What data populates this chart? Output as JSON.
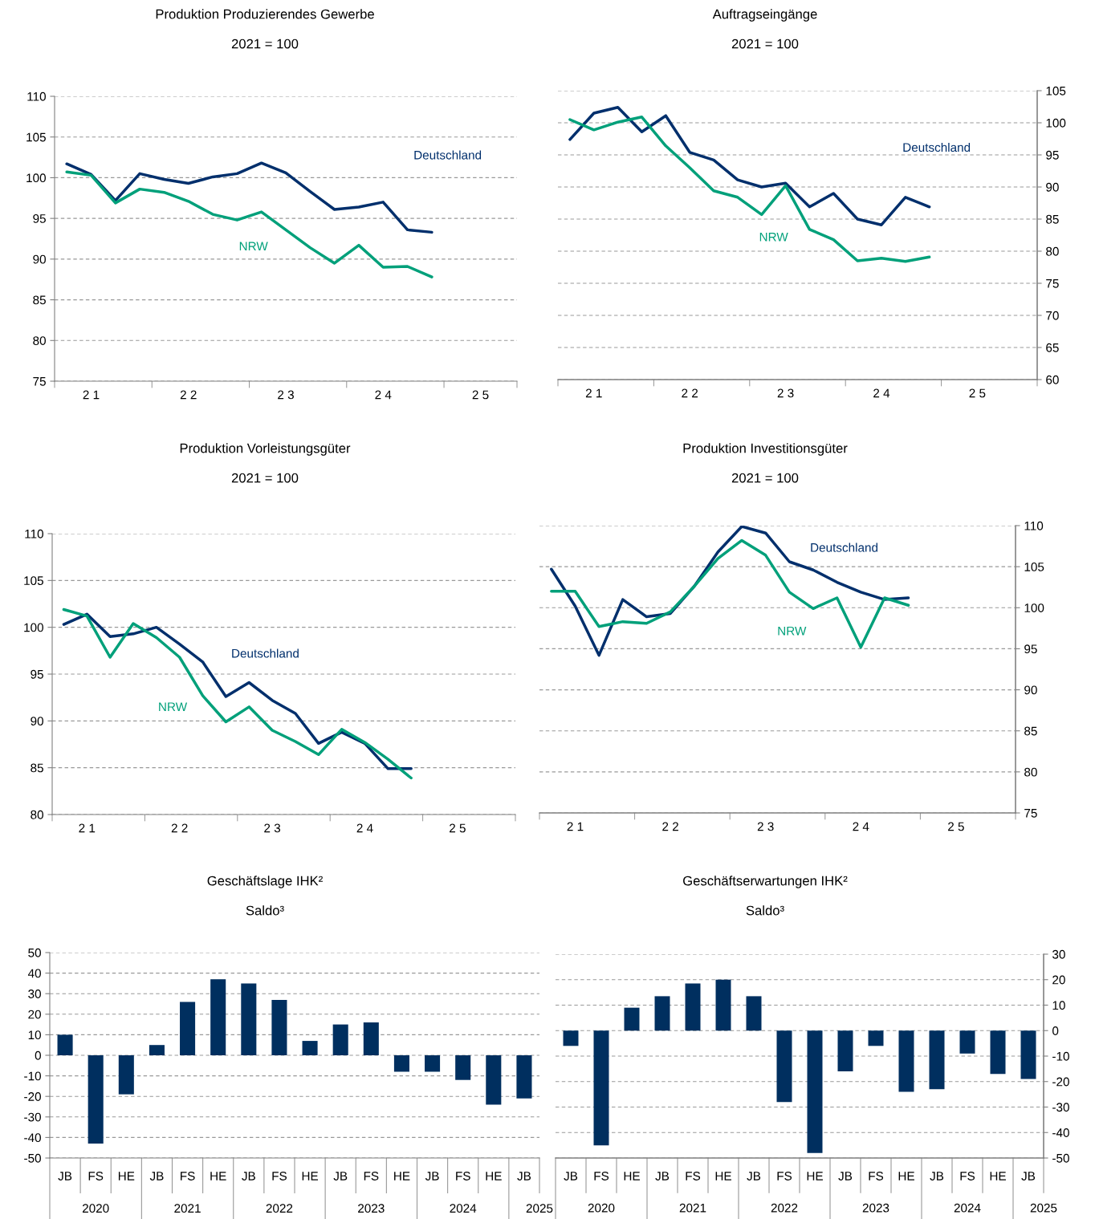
{
  "chart_data": [
    {
      "type": "line",
      "title": "Produktion Produzierendes Gewerbe",
      "subtitle": "2021 = 100",
      "categories": [
        null,
        "2 1",
        null,
        null,
        null,
        "2 2",
        null,
        null,
        null,
        "2 3",
        null,
        null,
        null,
        "2 4",
        null,
        null,
        null,
        "2 5",
        null
      ],
      "ylim": [
        75,
        110
      ],
      "yticks": [
        75,
        80,
        85,
        90,
        95,
        100,
        105,
        110
      ],
      "grid": "y",
      "series": [
        {
          "name": "Deutschland",
          "color": "#002f6c",
          "values": [
            101.7,
            100.4,
            97.2,
            100.5,
            99.8,
            99.3,
            100.1,
            100.5,
            101.8,
            100.6,
            98.3,
            96.1,
            96.4,
            97.0,
            93.6,
            93.3,
            null,
            null,
            null
          ]
        },
        {
          "name": "NRW",
          "color": "#00a07a",
          "values": [
            100.7,
            100.3,
            96.9,
            98.6,
            98.2,
            97.1,
            95.5,
            94.8,
            95.8,
            93.6,
            91.4,
            89.5,
            91.7,
            89.0,
            89.1,
            87.8,
            null,
            null,
            null
          ]
        }
      ]
    },
    {
      "type": "line",
      "title": "Auftragseingänge",
      "subtitle": "2021 = 100",
      "categories": [
        null,
        "2 1",
        null,
        null,
        null,
        "2 2",
        null,
        null,
        null,
        "2 3",
        null,
        null,
        null,
        "2 4",
        null,
        null,
        null,
        "2 5",
        null,
        null
      ],
      "y2lim": [
        60,
        105
      ],
      "y2ticks": [
        60,
        65,
        70,
        75,
        80,
        85,
        90,
        95,
        100,
        105
      ],
      "grid": "y",
      "series": [
        {
          "name": "Deutschland",
          "color": "#002f6c",
          "axis": "y2",
          "values": [
            97.4,
            101.5,
            102.4,
            98.6,
            101.1,
            95.4,
            94.2,
            91.1,
            90.0,
            90.6,
            86.9,
            89.0,
            85.0,
            84.1,
            88.4,
            86.9,
            null,
            null,
            null,
            null
          ]
        },
        {
          "name": "NRW",
          "color": "#00a07a",
          "axis": "y2",
          "values": [
            100.5,
            98.9,
            100.1,
            100.9,
            96.4,
            93.0,
            89.4,
            88.4,
            85.7,
            90.2,
            83.4,
            81.8,
            78.5,
            78.9,
            78.4,
            79.1,
            null,
            null,
            null,
            null
          ]
        }
      ]
    },
    {
      "type": "line",
      "title": "Produktion Vorleistungsgüter",
      "subtitle": "2021 = 100",
      "categories": [
        null,
        "2 1",
        null,
        null,
        null,
        "2 2",
        null,
        null,
        null,
        "2 3",
        null,
        null,
        null,
        "2 4",
        null,
        null,
        null,
        "2 5",
        null,
        null
      ],
      "ylim": [
        80,
        110
      ],
      "yticks": [
        80,
        85,
        90,
        95,
        100,
        105,
        110
      ],
      "grid": "y",
      "series": [
        {
          "name": "Deutschland",
          "color": "#002f6c",
          "values": [
            100.3,
            101.4,
            99.0,
            99.3,
            100.0,
            98.2,
            96.3,
            92.6,
            94.1,
            92.2,
            90.8,
            87.6,
            88.8,
            87.6,
            84.9,
            84.9,
            null,
            null,
            null,
            null
          ]
        },
        {
          "name": "NRW",
          "color": "#00a07a",
          "values": [
            101.9,
            101.2,
            96.8,
            100.4,
            98.9,
            96.8,
            92.7,
            89.9,
            91.5,
            89.0,
            87.8,
            86.4,
            89.1,
            87.7,
            85.9,
            83.9,
            null,
            null,
            null,
            null
          ]
        }
      ]
    },
    {
      "type": "line",
      "title": "Produktion Investitionsgüter",
      "subtitle": "2021 = 100",
      "categories": [
        null,
        "2 1",
        null,
        null,
        null,
        "2 2",
        null,
        null,
        null,
        "2 3",
        null,
        null,
        null,
        "2 4",
        null,
        null,
        null,
        "2 5",
        null,
        null
      ],
      "y2lim": [
        75,
        110
      ],
      "y2ticks": [
        75,
        80,
        85,
        90,
        95,
        100,
        105,
        110
      ],
      "grid": "y",
      "series": [
        {
          "name": "Deutschland",
          "color": "#002f6c",
          "axis": "y2",
          "values": [
            104.7,
            100.2,
            94.2,
            101.0,
            98.9,
            99.3,
            102.6,
            106.8,
            109.9,
            109.1,
            105.6,
            104.6,
            103.1,
            101.9,
            101.0,
            101.2,
            null,
            null,
            null,
            null
          ]
        },
        {
          "name": "NRW",
          "color": "#00a07a",
          "axis": "y2",
          "values": [
            102.0,
            102.0,
            97.7,
            98.3,
            98.1,
            99.5,
            102.6,
            106.0,
            108.2,
            106.4,
            101.9,
            99.9,
            101.2,
            95.2,
            101.2,
            100.3,
            null,
            null,
            null,
            null
          ]
        }
      ]
    },
    {
      "type": "bar",
      "title": "Geschäftslage IHK²",
      "subtitle": "Saldo³",
      "categories": [
        "JB",
        "FS",
        "HE",
        "JB",
        "FS",
        "HE",
        "JB",
        "FS",
        "HE",
        "JB",
        "FS",
        "HE",
        "JB",
        "FS",
        "HE",
        "JB"
      ],
      "ylim": [
        -50,
        50
      ],
      "yticks": [
        -50,
        -40,
        -30,
        -20,
        -10,
        0,
        10,
        20,
        30,
        40,
        50
      ],
      "grid": "y",
      "annotations": [
        "2020",
        "2021",
        "2022",
        "2023",
        "2024",
        "2025"
      ],
      "series": [
        {
          "color": "#002f5f",
          "values": [
            10,
            -43,
            -19,
            5,
            26,
            37,
            35,
            27,
            7,
            15,
            16,
            -8,
            -8,
            -12,
            -24,
            -21
          ]
        }
      ]
    },
    {
      "type": "bar",
      "title": "Geschäftserwartungen IHK²",
      "subtitle": "Saldo³",
      "categories": [
        "JB",
        "FS",
        "HE",
        "JB",
        "FS",
        "HE",
        "JB",
        "FS",
        "HE",
        "JB",
        "FS",
        "HE",
        "JB",
        "FS",
        "HE",
        "JB"
      ],
      "y2lim": [
        -50,
        30
      ],
      "y2ticks": [
        -50,
        -40,
        -30,
        -20,
        -10,
        0,
        10,
        20,
        30
      ],
      "grid": "y",
      "annotations": [
        "2020",
        "2021",
        "2022",
        "2023",
        "2024",
        "2025"
      ],
      "series": [
        {
          "color": "#002f5f",
          "axis": "y2",
          "values": [
            -6,
            -45,
            9,
            13.5,
            18.5,
            20,
            13.5,
            -28,
            -48,
            -16,
            -6,
            -24,
            -23,
            -9,
            -17,
            -19
          ]
        }
      ]
    }
  ]
}
